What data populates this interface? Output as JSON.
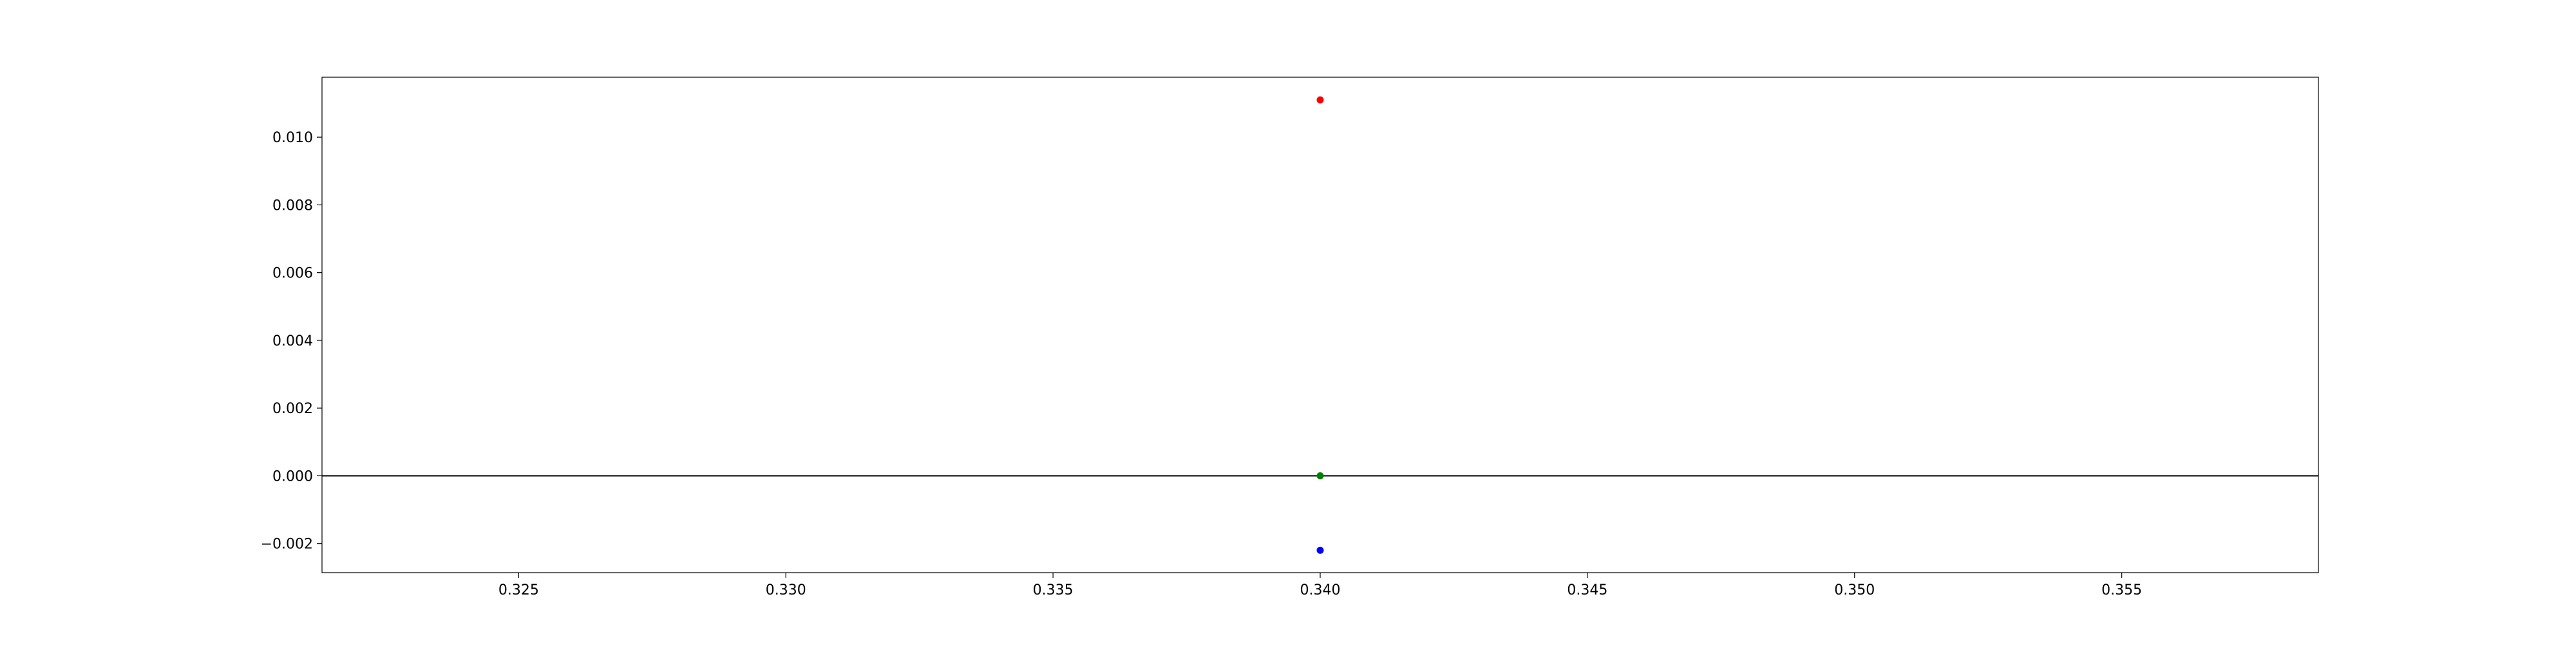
{
  "chart_data": {
    "type": "scatter",
    "title": "",
    "xlabel": "",
    "ylabel": "",
    "xlim": [
      0.32132,
      0.35868
    ],
    "ylim": [
      -0.00286,
      0.01177
    ],
    "x_ticks": [
      {
        "value": 0.325,
        "label": "0.325"
      },
      {
        "value": 0.33,
        "label": "0.330"
      },
      {
        "value": 0.335,
        "label": "0.335"
      },
      {
        "value": 0.34,
        "label": "0.340"
      },
      {
        "value": 0.345,
        "label": "0.345"
      },
      {
        "value": 0.35,
        "label": "0.350"
      },
      {
        "value": 0.355,
        "label": "0.355"
      }
    ],
    "y_ticks": [
      {
        "value": -0.002,
        "label": "−0.002"
      },
      {
        "value": 0.0,
        "label": "0.000"
      },
      {
        "value": 0.002,
        "label": "0.002"
      },
      {
        "value": 0.004,
        "label": "0.004"
      },
      {
        "value": 0.006,
        "label": "0.006"
      },
      {
        "value": 0.008,
        "label": "0.008"
      },
      {
        "value": 0.01,
        "label": "0.010"
      }
    ],
    "grid": false,
    "reference_lines": [
      {
        "axis": "y",
        "value": 0.0,
        "color": "#000000"
      }
    ],
    "points": [
      {
        "x": 0.34,
        "y": 0.0111,
        "color": "#ff0000"
      },
      {
        "x": 0.34,
        "y": 0.0,
        "color": "#008000"
      },
      {
        "x": 0.34,
        "y": -0.0022,
        "color": "#0000ff"
      }
    ]
  }
}
